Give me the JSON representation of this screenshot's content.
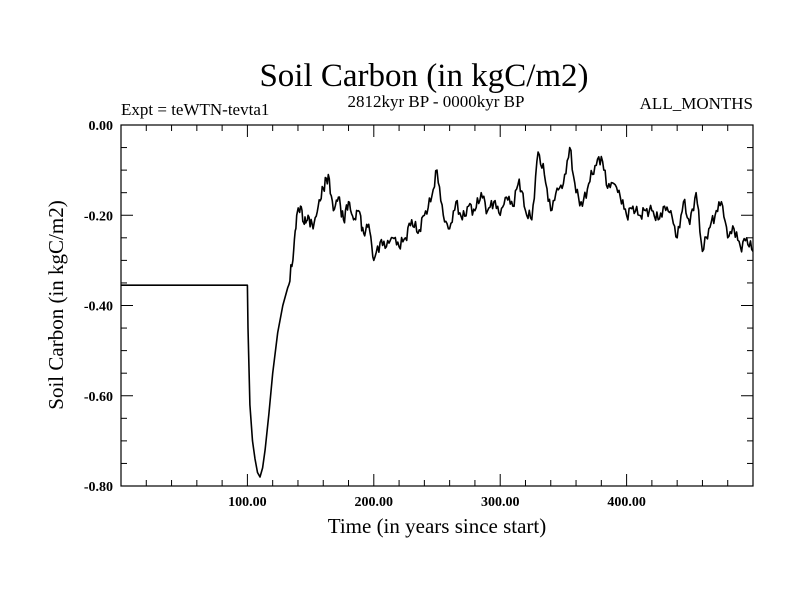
{
  "chart_data": {
    "type": "line",
    "title": "Soil Carbon (in kgC/m2)",
    "left_label": "Expt = teWTN-tevta1",
    "center_label": "2812kyr BP - 0000kyr BP",
    "right_label": "ALL_MONTHS",
    "xlabel": "Time (in years since start)",
    "ylabel": "Soil Carbon (in kgC/m2)",
    "xlim": [
      0,
      500
    ],
    "ylim": [
      -0.8,
      0.0
    ],
    "x_ticks": [
      100,
      200,
      300,
      400
    ],
    "x_tick_labels": [
      "100.00",
      "200.00",
      "300.00",
      "400.00"
    ],
    "y_ticks": [
      0.0,
      -0.2,
      -0.4,
      -0.6,
      -0.8
    ],
    "y_tick_labels": [
      "0.00",
      "-0.20",
      "-0.40",
      "-0.60",
      "-0.80"
    ],
    "line_color": "#000000",
    "series": [
      {
        "name": "Soil Carbon",
        "x": [
          0,
          100,
          100.5,
          102,
          104,
          106,
          108,
          110,
          112,
          114,
          117,
          120,
          124,
          128,
          132,
          136,
          139,
          142,
          145,
          148,
          152,
          156,
          160,
          164,
          168,
          172,
          176,
          180,
          184,
          188,
          192,
          196,
          200,
          205,
          210,
          215,
          220,
          225,
          230,
          235,
          240,
          245,
          250,
          255,
          260,
          265,
          270,
          275,
          280,
          285,
          290,
          295,
          300,
          305,
          310,
          315,
          320,
          325,
          330,
          335,
          340,
          345,
          350,
          355,
          360,
          365,
          370,
          375,
          380,
          385,
          390,
          395,
          400,
          405,
          410,
          415,
          420,
          425,
          430,
          435,
          440,
          445,
          450,
          455,
          460,
          465,
          470,
          475,
          480,
          485,
          490,
          495,
          500
        ],
        "values": [
          -0.355,
          -0.355,
          -0.45,
          -0.62,
          -0.7,
          -0.74,
          -0.77,
          -0.78,
          -0.76,
          -0.72,
          -0.64,
          -0.55,
          -0.46,
          -0.4,
          -0.36,
          -0.3,
          -0.2,
          -0.18,
          -0.22,
          -0.2,
          -0.23,
          -0.18,
          -0.14,
          -0.11,
          -0.19,
          -0.16,
          -0.21,
          -0.17,
          -0.21,
          -0.19,
          -0.24,
          -0.22,
          -0.3,
          -0.26,
          -0.27,
          -0.25,
          -0.27,
          -0.25,
          -0.21,
          -0.24,
          -0.2,
          -0.17,
          -0.1,
          -0.2,
          -0.23,
          -0.17,
          -0.21,
          -0.18,
          -0.19,
          -0.15,
          -0.19,
          -0.17,
          -0.2,
          -0.16,
          -0.18,
          -0.12,
          -0.19,
          -0.21,
          -0.06,
          -0.11,
          -0.19,
          -0.14,
          -0.13,
          -0.05,
          -0.15,
          -0.18,
          -0.13,
          -0.09,
          -0.07,
          -0.14,
          -0.13,
          -0.16,
          -0.2,
          -0.18,
          -0.2,
          -0.19,
          -0.19,
          -0.21,
          -0.18,
          -0.19,
          -0.25,
          -0.17,
          -0.22,
          -0.15,
          -0.28,
          -0.23,
          -0.2,
          -0.17,
          -0.25,
          -0.23,
          -0.27,
          -0.25,
          -0.28
        ]
      }
    ]
  }
}
